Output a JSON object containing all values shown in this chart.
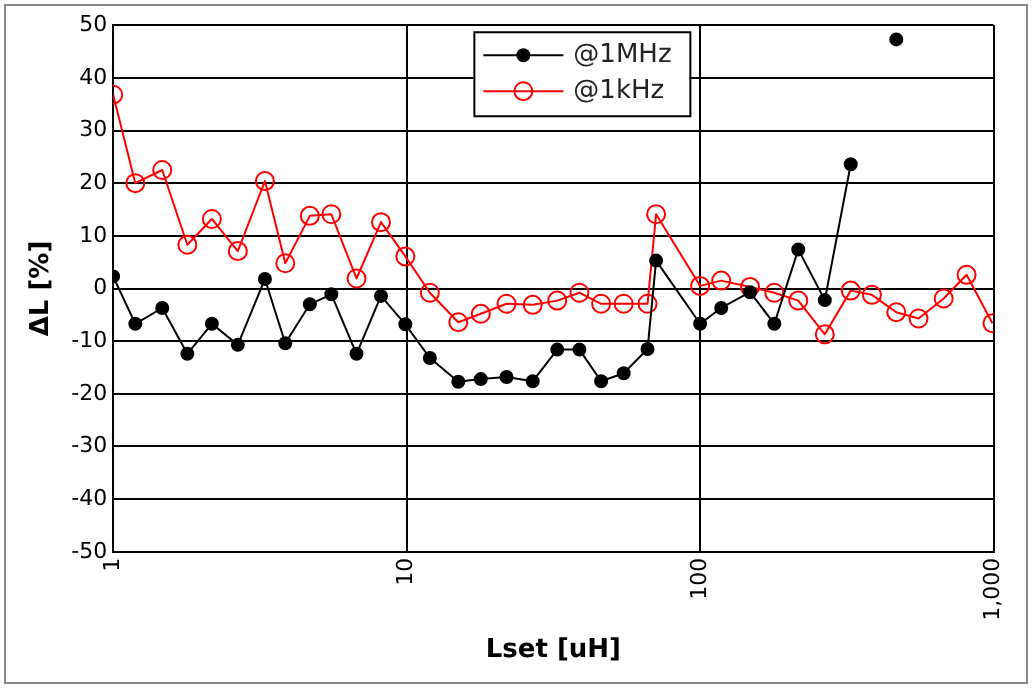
{
  "chart_data": {
    "type": "line",
    "xlabel": "Lset [uH]",
    "ylabel": "ΔL [%]",
    "x": [
      1,
      1.19,
      1.47,
      1.79,
      2.17,
      2.66,
      3.29,
      3.86,
      4.68,
      5.54,
      6.75,
      8.18,
      9.9,
      12,
      15,
      17.9,
      21.9,
      26.9,
      32.6,
      38.8,
      46,
      54.9,
      66.2,
      70.8,
      100,
      118,
      148,
      179,
      216,
      266,
      326,
      385,
      466,
      555,
      676,
      809,
      991
    ],
    "series": [
      {
        "name": "@1MHz",
        "color": "#000000",
        "marker": "circle",
        "values": [
          2.3,
          -6.7,
          -3.7,
          -12.4,
          -6.7,
          -10.7,
          1.8,
          -10.4,
          -3,
          -1.1,
          -12.4,
          -1.4,
          -6.8,
          -13.2,
          -17.7,
          -17.2,
          -16.8,
          -17.6,
          -11.6,
          -11.6,
          -17.6,
          -16.1,
          -11.5,
          5.3,
          -6.7,
          -3.7,
          -0.7,
          -6.7,
          7.4,
          -2.2,
          23.6,
          null,
          47.3,
          null,
          null,
          null,
          null
        ]
      },
      {
        "name": "@1kHz",
        "color": "#ff0000",
        "marker": "circle",
        "values": [
          36.8,
          20,
          22.5,
          8.3,
          13.2,
          7.1,
          20.4,
          4.8,
          13.8,
          14.1,
          1.9,
          12.6,
          6.1,
          -0.8,
          -6.4,
          -4.8,
          -2.9,
          -3.1,
          -2.3,
          -0.8,
          -2.9,
          -2.9,
          -2.9,
          14.1,
          0.5,
          1.5,
          0.3,
          -0.8,
          -2.3,
          -8.7,
          -0.4,
          -1.2,
          -4.5,
          -5.7,
          -1.9,
          2.6,
          -6.6
        ]
      }
    ],
    "log": "x",
    "xlim": [
      1,
      1000
    ],
    "xticks": [
      1,
      10,
      100,
      {
        "value": 1000,
        "label": "1,000"
      }
    ],
    "ylim": [
      -50,
      50
    ],
    "yticks": [
      -50,
      -40,
      -30,
      -20,
      -10,
      0,
      10,
      20,
      30,
      40,
      50
    ],
    "grid": true,
    "legend": "top"
  }
}
